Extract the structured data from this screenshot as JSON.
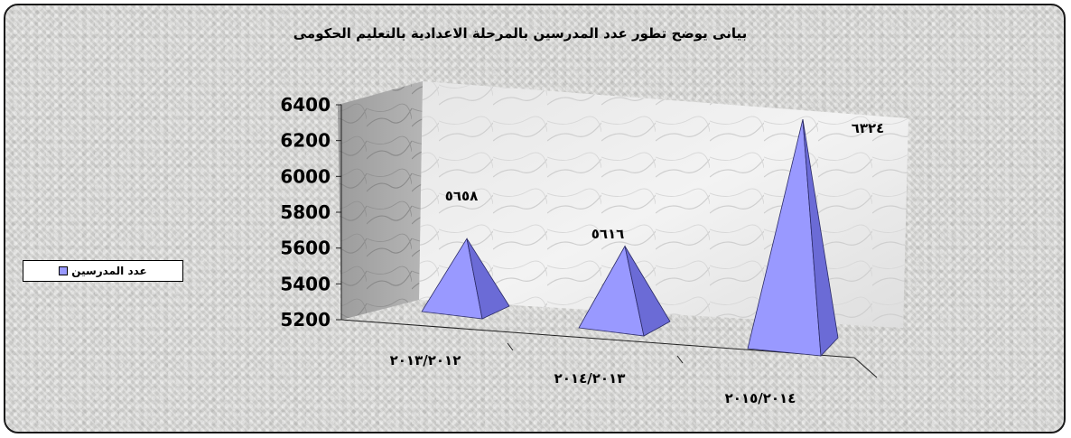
{
  "chart_data": {
    "type": "bar",
    "shape": "pyramid",
    "title": "بيانى يوضح  تطور عدد المدرسين بالمرحلة الاعدادية بالتعليم الحكومى",
    "categories": [
      "٢٠١٣/٢٠١٢",
      "٢٠١٤/٢٠١٣",
      "٢٠١٥/٢٠١٤"
    ],
    "series": [
      {
        "name": "عدد المدرسين",
        "values": [
          5658,
          5616,
          6324
        ]
      }
    ],
    "data_labels": [
      "٥٦٥٨",
      "٥٦١٦",
      "٦٣٢٤"
    ],
    "y_ticks": [
      "5200",
      "5400",
      "5600",
      "5800",
      "6000",
      "6200",
      "6400"
    ],
    "ylim": [
      5200,
      6400
    ],
    "grid": false,
    "legend_position": "left",
    "colors": {
      "series": "#9999ff",
      "series_dark": "#6b6bd6",
      "series_light": "#b3b3ff"
    }
  }
}
